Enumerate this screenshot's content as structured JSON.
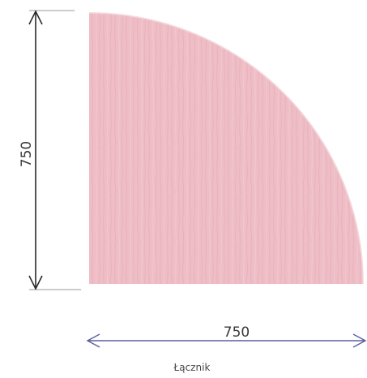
{
  "diagram": {
    "vertical_dimension": "750",
    "horizontal_dimension": "750",
    "caption": "Łącznik"
  },
  "colors": {
    "panel_fill": "#eebdc6",
    "panel_grain": "#e2a6b2",
    "vertical_dimension_line": "#2a2a2a",
    "horizontal_dimension_line": "#5a5f9e",
    "text": "#3a3a3a"
  }
}
